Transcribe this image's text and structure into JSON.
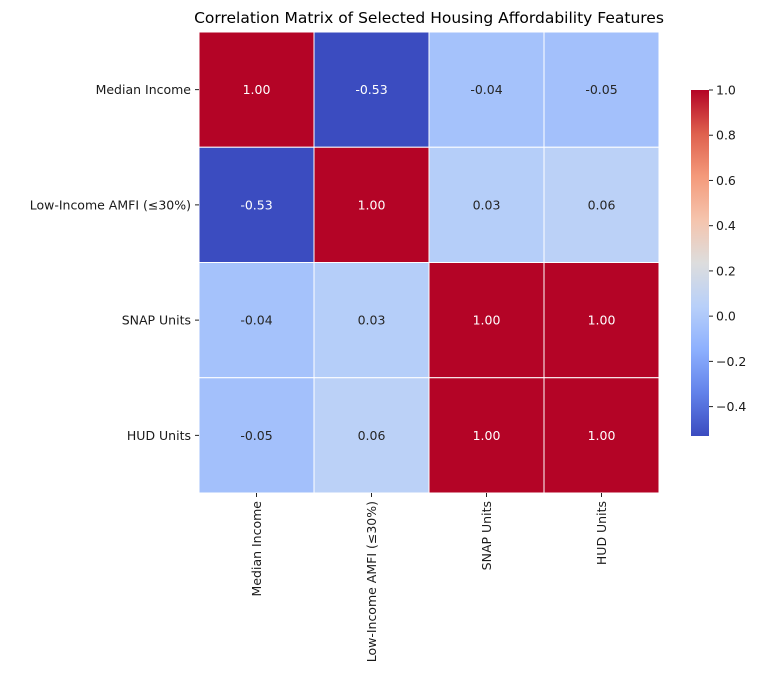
{
  "chart_data": {
    "type": "heatmap",
    "title": "Correlation Matrix of Selected Housing Affordability Features",
    "xlabel": "",
    "ylabel": "",
    "row_labels": [
      "Median Income",
      "Low-Income AMFI (≤30%)",
      "SNAP Units",
      "HUD Units"
    ],
    "col_labels": [
      "Median Income",
      "Low-Income AMFI (≤30%)",
      "SNAP Units",
      "HUD Units"
    ],
    "values": [
      [
        1.0,
        -0.53,
        -0.04,
        -0.05
      ],
      [
        -0.53,
        1.0,
        0.03,
        0.06
      ],
      [
        -0.04,
        0.03,
        1.0,
        1.0
      ],
      [
        -0.05,
        0.06,
        1.0,
        1.0
      ]
    ],
    "annotations": [
      [
        "1.00",
        "-0.53",
        "-0.04",
        "-0.05"
      ],
      [
        "-0.53",
        "1.00",
        "0.03",
        "0.06"
      ],
      [
        "-0.04",
        "0.03",
        "1.00",
        "1.00"
      ],
      [
        "-0.05",
        "0.06",
        "1.00",
        "1.00"
      ]
    ],
    "colormap": "coolwarm",
    "colorbar": {
      "range": [
        -0.53,
        1.0
      ],
      "ticks": [
        1.0,
        0.8,
        0.6,
        0.4,
        0.2,
        0.0,
        -0.2,
        -0.4
      ],
      "tick_labels": [
        "1.0",
        "0.8",
        "0.6",
        "0.4",
        "0.2",
        "0.0",
        "−0.2",
        "−0.4"
      ],
      "placement": "right"
    },
    "grid": false,
    "cell_border_color": "#ffffff"
  }
}
